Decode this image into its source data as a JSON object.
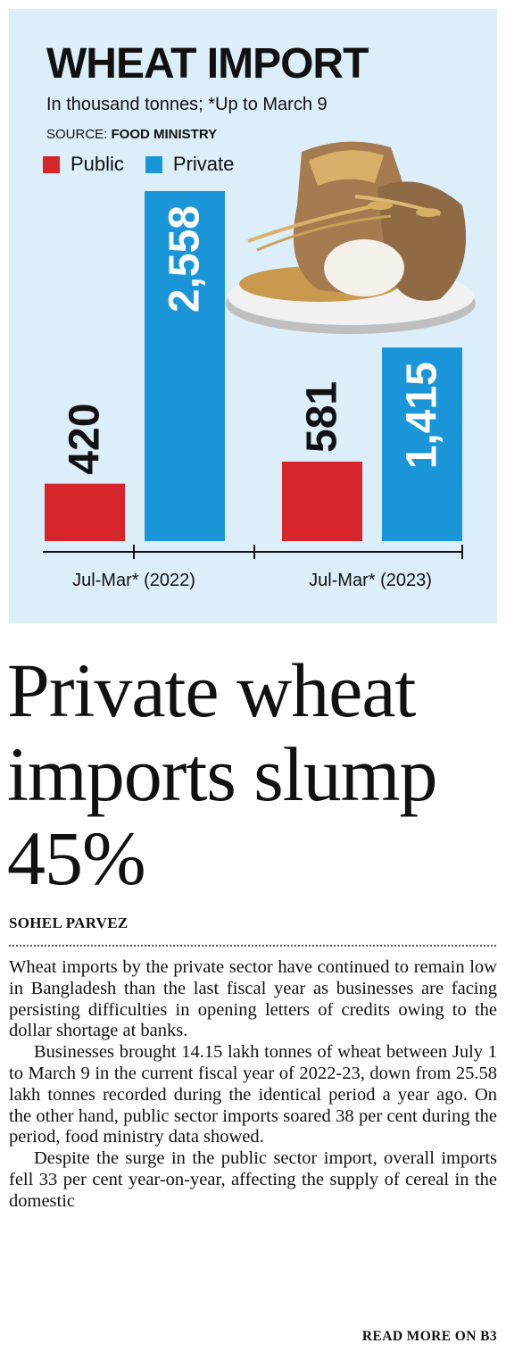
{
  "chart": {
    "title": "WHEAT IMPORT",
    "subtitle": "In thousand tonnes; *Up to March 9",
    "source_label": "SOURCE:",
    "source_name": "FOOD MINISTRY",
    "colors": {
      "public": "#d7262b",
      "private": "#1a96d8",
      "background": "#dceef9"
    }
  },
  "chart_data": {
    "type": "bar",
    "title": "WHEAT IMPORT",
    "subtitle": "In thousand tonnes; *Up to March 9",
    "categories": [
      "Jul-Mar* (2022)",
      "Jul-Mar* (2023)"
    ],
    "series": [
      {
        "name": "Public",
        "values": [
          420,
          581
        ],
        "labels": [
          "420",
          "581"
        ],
        "color": "#d7262b"
      },
      {
        "name": "Private",
        "values": [
          2558,
          1415
        ],
        "labels": [
          "2,558",
          "1,415"
        ],
        "color": "#1a96d8"
      }
    ],
    "legend_position": "top-left",
    "grid": false
  },
  "article": {
    "headline": "Private wheat imports slump 45%",
    "byline": "SOHEL PARVEZ",
    "paragraphs": [
      "Wheat imports by the private sector have continued to remain low in Bangladesh than the last fiscal year as businesses are facing persisting difficulties in opening letters of credits owing to the dollar shortage at banks.",
      "Businesses brought 14.15 lakh tonnes of wheat between July 1 to March 9 in the current fiscal year of 2022-23, down from 25.58 lakh tonnes recorded during the identical period a year ago. On the other hand, public sector imports soared 38 per cent during the period, food ministry data showed.",
      "Despite the surge in the public sector import, overall imports fell 33 per cent year-on-year, affecting the supply of cereal in the domestic"
    ],
    "read_more": "READ MORE ON B3"
  }
}
